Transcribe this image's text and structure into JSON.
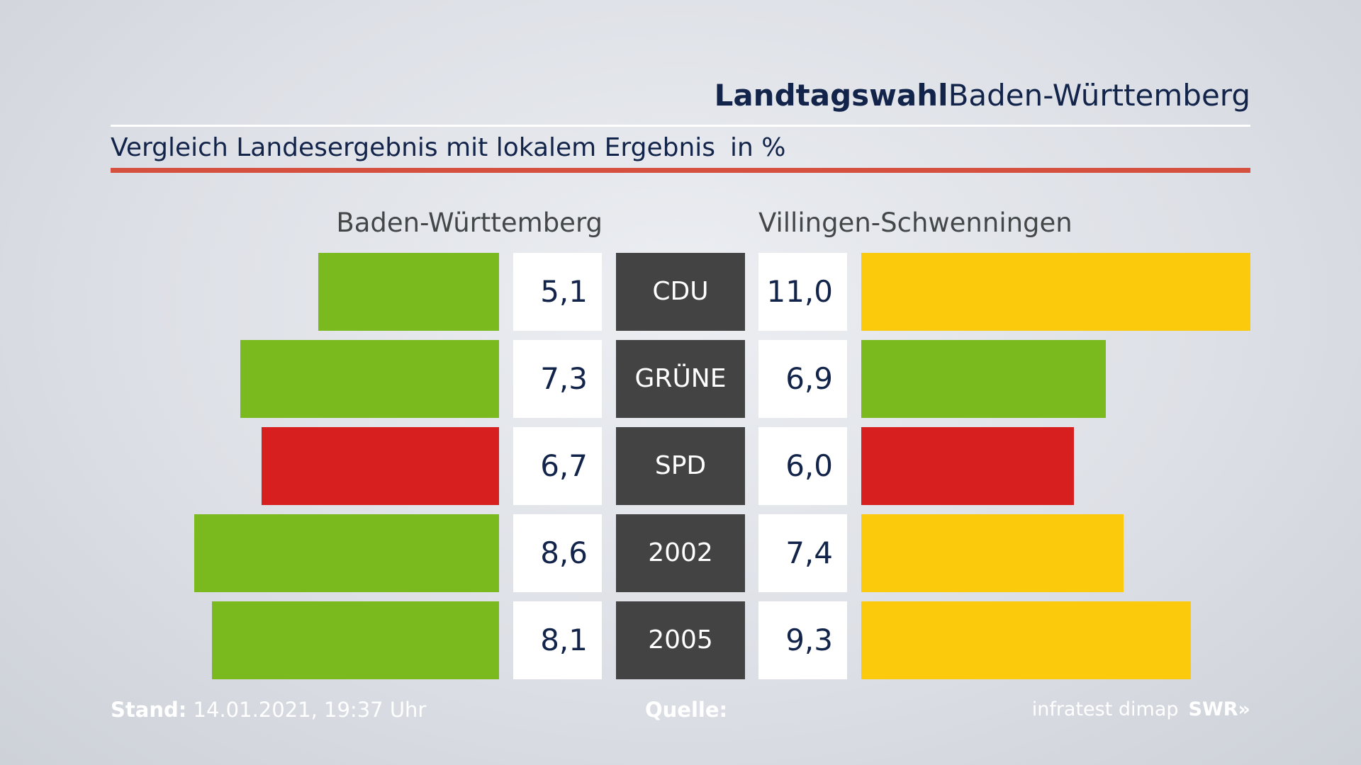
{
  "header": {
    "title_bold": "Landtagswahl",
    "title_regular": "Baden-Württemberg",
    "subtitle": "Vergleich Landesergebnis mit lokalem Ergebnis",
    "unit": "in %"
  },
  "colors": {
    "accent_rule": "#d6503f",
    "green": "#7aba1e",
    "red": "#d81f1f",
    "yellow": "#fcca0d",
    "party_box": "#434343",
    "text": "#13244a"
  },
  "chart_data": {
    "type": "bar",
    "left_header": "Baden-Württemberg",
    "right_header": "Villingen-Schwenningen",
    "categories": [
      "CDU",
      "GRÜNE",
      "SPD",
      "2002",
      "2005"
    ],
    "series": [
      {
        "name": "Baden-Württemberg",
        "values": [
          5.1,
          7.3,
          6.7,
          8.6,
          8.1
        ],
        "labels": [
          "5,1",
          "7,3",
          "6,7",
          "8,6",
          "8,1"
        ],
        "colors": [
          "#7aba1e",
          "#7aba1e",
          "#d81f1f",
          "#7aba1e",
          "#7aba1e"
        ]
      },
      {
        "name": "Villingen-Schwenningen",
        "values": [
          11.0,
          6.9,
          6.0,
          7.4,
          9.3
        ],
        "labels": [
          "11,0",
          "6,9",
          "6,0",
          "7,4",
          "9,3"
        ],
        "colors": [
          "#fcca0d",
          "#7aba1e",
          "#d81f1f",
          "#fcca0d",
          "#fcca0d"
        ]
      }
    ]
  },
  "footer": {
    "stand_label": "Stand:",
    "stand_value": "14.01.2021, 19:37 Uhr",
    "quelle_label": "Quelle:",
    "source": "infratest dimap",
    "brand": "SWR»"
  }
}
